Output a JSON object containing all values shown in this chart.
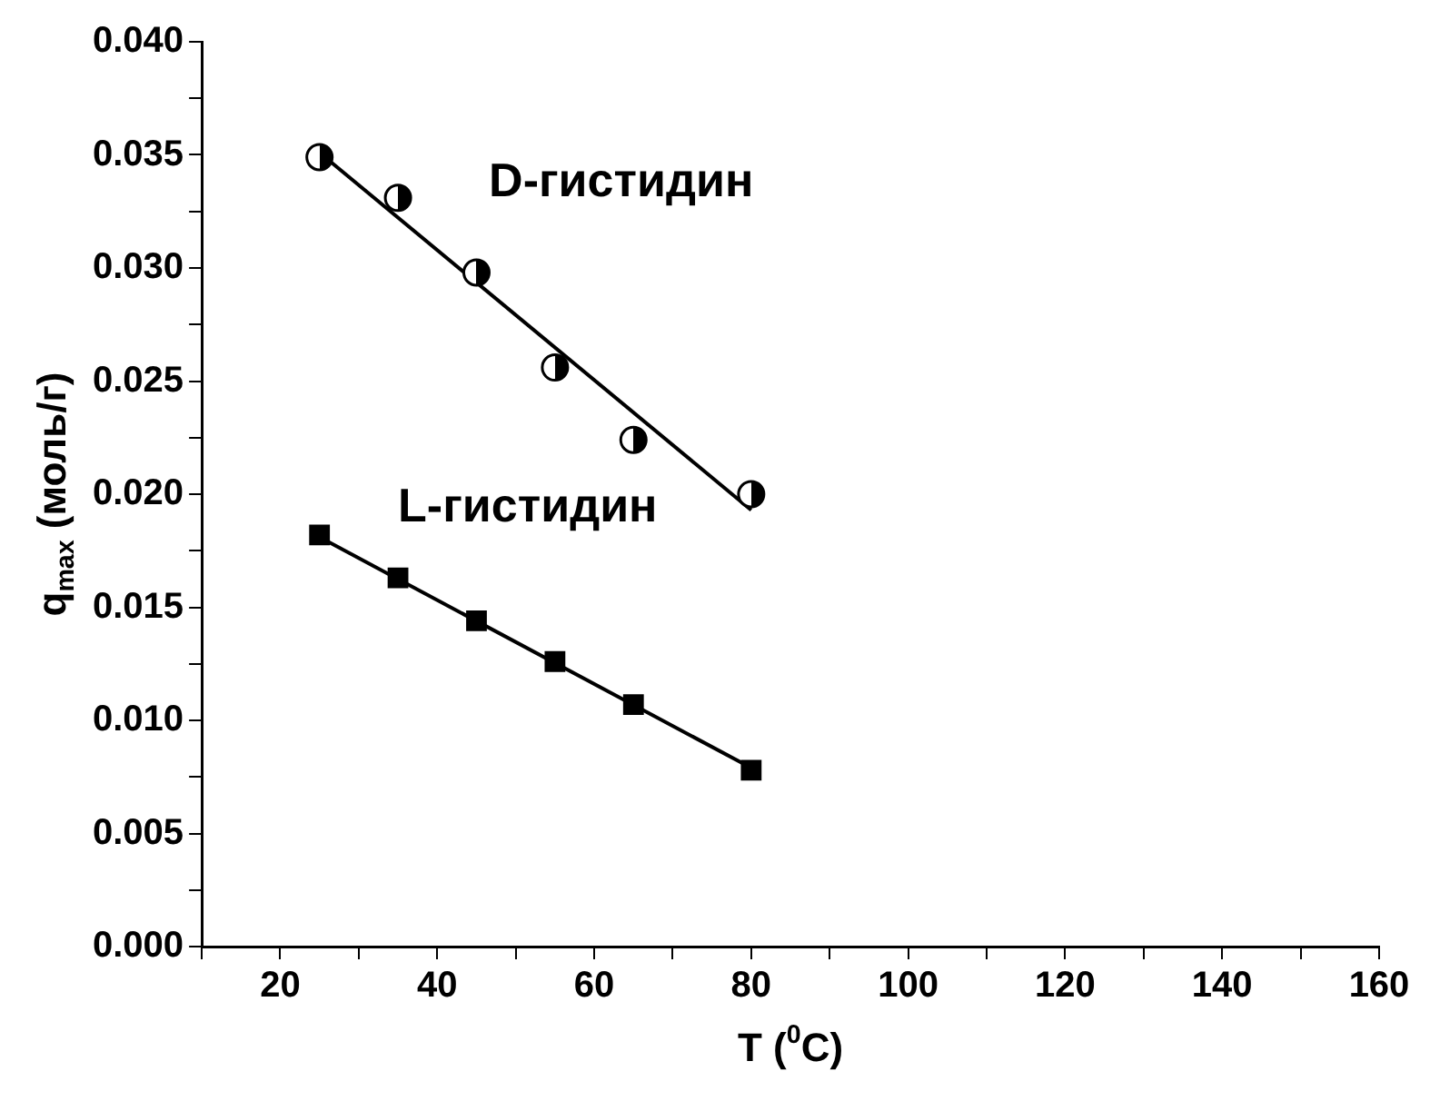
{
  "chart_data": {
    "type": "scatter",
    "xlabel": "T ($^{0}$C)",
    "ylabel": "q$_{max}$ (моль/г)",
    "xlim": [
      10,
      160
    ],
    "xticks": [
      {
        "value": 10,
        "label": null
      },
      20,
      {
        "value": 30,
        "label": null
      },
      40,
      {
        "value": 50,
        "label": null
      },
      60,
      {
        "value": 70,
        "label": null
      },
      80,
      {
        "value": 90,
        "label": null
      },
      100,
      {
        "value": 110,
        "label": null
      },
      120,
      {
        "value": 130,
        "label": null
      },
      140,
      {
        "value": 150,
        "label": null
      },
      160
    ],
    "ylim": [
      0,
      0.04
    ],
    "yticks": [
      {
        "value": 0,
        "label": "0.000"
      },
      {
        "value": 0.0025,
        "label": null
      },
      {
        "value": 0.005,
        "label": "0.005"
      },
      {
        "value": 0.0075,
        "label": null
      },
      {
        "value": 0.01,
        "label": "0.010"
      },
      {
        "value": 0.0125,
        "label": null
      },
      {
        "value": 0.015,
        "label": "0.015"
      },
      {
        "value": 0.0175,
        "label": null
      },
      {
        "value": 0.02,
        "label": "0.020"
      },
      {
        "value": 0.0225,
        "label": null
      },
      {
        "value": 0.025,
        "label": "0.025"
      },
      {
        "value": 0.0275,
        "label": null
      },
      {
        "value": 0.03,
        "label": "0.030"
      },
      {
        "value": 0.0325,
        "label": null
      },
      {
        "value": 0.035,
        "label": "0.035"
      },
      {
        "value": 0.0375,
        "label": null
      },
      {
        "value": 0.04,
        "label": "0.040"
      }
    ],
    "grid": false,
    "legend": false,
    "series": [
      {
        "name": "D-гистидин",
        "type": "scatter",
        "marker": "circle",
        "color": "#000000",
        "x": [
          25,
          35,
          45,
          55,
          65,
          80
        ],
        "values": [
          0.0349,
          0.0331,
          0.0298,
          0.0256,
          0.0224,
          0.02
        ]
      },
      {
        "type": "line",
        "marker": "none",
        "color": "#000000",
        "x": [
          25,
          80
        ],
        "values": [
          0.0351,
          0.0193
        ]
      },
      {
        "name": "L-гистидин",
        "type": "scatter",
        "marker": "square",
        "color": "#000000",
        "x": [
          25,
          35,
          45,
          55,
          65,
          80
        ],
        "values": [
          0.0182,
          0.0163,
          0.0144,
          0.0126,
          0.0107,
          0.0078
        ]
      },
      {
        "type": "line",
        "marker": "none",
        "color": "#000000",
        "x": [
          25,
          80
        ],
        "values": [
          0.0181,
          0.0079
        ]
      }
    ]
  }
}
